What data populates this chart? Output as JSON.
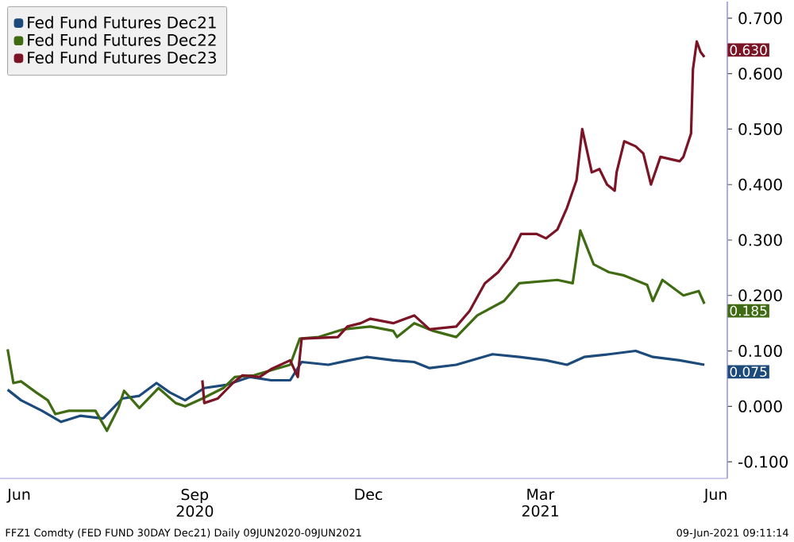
{
  "chart_data": {
    "type": "line",
    "legend": "top left",
    "marker": "none",
    "line_style": "solid",
    "grid": false,
    "xticks": [
      {
        "value": "2020-06-15",
        "label": "Jun"
      },
      {
        "value": "2020-09-15",
        "label": "Sep 2020"
      },
      {
        "value": "2020-12-15",
        "label": "Dec"
      },
      {
        "value": "2021-03-15",
        "label": "Mar 2021"
      },
      {
        "value": "2021-06-15",
        "label": "Jun"
      }
    ],
    "xlim": [
      "2020-06-05",
      "2021-06-21"
    ],
    "ylim": [
      -0.13,
      0.73
    ],
    "yticks": [
      {
        "value": -0.1,
        "label": "-0.100"
      },
      {
        "value": 0,
        "label": "0.000"
      },
      {
        "value": 0.1,
        "label": "0.100"
      },
      {
        "value": 0.2,
        "label": "0.200"
      },
      {
        "value": 0.3,
        "label": "0.300"
      },
      {
        "value": 0.4,
        "label": "0.400"
      },
      {
        "value": 0.5,
        "label": "0.500"
      },
      {
        "value": 0.6,
        "label": "0.600"
      },
      {
        "value": 0.7,
        "label": "0.700"
      }
    ],
    "series": [
      {
        "name": "Fed Fund Futures Dec21",
        "color": "#1c4a7a",
        "x": [
          "2020-06-09",
          "2020-06-16",
          "2020-06-27",
          "2020-07-07",
          "2020-07-17",
          "2020-07-29",
          "2020-08-08",
          "2020-08-17",
          "2020-08-26",
          "2020-09-02",
          "2020-09-10",
          "2020-09-20",
          "2020-10-02",
          "2020-10-14",
          "2020-10-25",
          "2020-11-04",
          "2020-11-10",
          "2020-11-24",
          "2020-12-05",
          "2020-12-14",
          "2020-12-28",
          "2021-01-08",
          "2021-01-16",
          "2021-01-30",
          "2021-02-18",
          "2021-03-04",
          "2021-03-18",
          "2021-03-29",
          "2021-04-07",
          "2021-04-20",
          "2021-05-04",
          "2021-05-13",
          "2021-05-27",
          "2021-06-09"
        ],
        "values": [
          0.03,
          0.011,
          -0.008,
          -0.028,
          -0.017,
          -0.022,
          0.014,
          0.019,
          0.042,
          0.025,
          0.011,
          0.033,
          0.039,
          0.053,
          0.047,
          0.047,
          0.08,
          0.075,
          0.083,
          0.089,
          0.083,
          0.08,
          0.069,
          0.075,
          0.094,
          0.089,
          0.083,
          0.075,
          0.089,
          0.094,
          0.1,
          0.089,
          0.083,
          0.075
        ]
      },
      {
        "name": "Fed Fund Futures Dec22",
        "color": "#3f6b12",
        "x": [
          "2020-06-09",
          "2020-06-12",
          "2020-06-16",
          "2020-06-24",
          "2020-06-30",
          "2020-07-04",
          "2020-07-11",
          "2020-07-25",
          "2020-07-31",
          "2020-08-06",
          "2020-08-09",
          "2020-08-17",
          "2020-08-27",
          "2020-09-05",
          "2020-09-10",
          "2020-09-19",
          "2020-09-30",
          "2020-10-06",
          "2020-10-16",
          "2020-10-27",
          "2020-11-04",
          "2020-11-09",
          "2020-11-19",
          "2020-12-02",
          "2020-12-16",
          "2020-12-28",
          "2020-12-30",
          "2021-01-08",
          "2021-01-18",
          "2021-01-30",
          "2021-02-10",
          "2021-02-24",
          "2021-03-04",
          "2021-03-24",
          "2021-04-01",
          "2021-04-05",
          "2021-04-12",
          "2021-04-20",
          "2021-04-28",
          "2021-05-10",
          "2021-05-13",
          "2021-05-18",
          "2021-05-29",
          "2021-06-06",
          "2021-06-09"
        ],
        "values": [
          0.103,
          0.042,
          0.045,
          0.025,
          0.011,
          -0.014,
          -0.008,
          -0.008,
          -0.044,
          -0.003,
          0.028,
          -0.003,
          0.033,
          0.006,
          0.0,
          0.014,
          0.033,
          0.053,
          0.056,
          0.067,
          0.075,
          0.122,
          0.125,
          0.139,
          0.144,
          0.136,
          0.125,
          0.15,
          0.136,
          0.125,
          0.164,
          0.19,
          0.222,
          0.228,
          0.222,
          0.317,
          0.256,
          0.242,
          0.236,
          0.219,
          0.19,
          0.228,
          0.2,
          0.208,
          0.185
        ]
      },
      {
        "name": "Fed Fund Futures Dec23",
        "color": "#7b1424",
        "x": [
          "2020-09-19",
          "2020-09-20",
          "2020-09-27",
          "2020-10-05",
          "2020-10-10",
          "2020-10-19",
          "2020-10-25",
          "2020-11-04",
          "2020-11-08",
          "2020-11-10",
          "2020-11-29",
          "2020-12-04",
          "2020-12-11",
          "2020-12-16",
          "2020-12-28",
          "2021-01-08",
          "2021-01-16",
          "2021-01-30",
          "2021-02-06",
          "2021-02-14",
          "2021-02-21",
          "2021-02-27",
          "2021-03-05",
          "2021-03-13",
          "2021-03-18",
          "2021-03-24",
          "2021-03-29",
          "2021-04-03",
          "2021-04-06",
          "2021-04-11",
          "2021-04-15",
          "2021-04-19",
          "2021-04-23",
          "2021-04-24",
          "2021-04-28",
          "2021-05-04",
          "2021-05-08",
          "2021-05-12",
          "2021-05-17",
          "2021-05-27",
          "2021-05-29",
          "2021-06-02",
          "2021-06-03",
          "2021-06-05",
          "2021-06-07",
          "2021-06-09"
        ],
        "values": [
          0.047,
          0.006,
          0.014,
          0.042,
          0.056,
          0.053,
          0.067,
          0.083,
          0.053,
          0.122,
          0.125,
          0.144,
          0.15,
          0.158,
          0.15,
          0.164,
          0.139,
          0.144,
          0.172,
          0.222,
          0.242,
          0.269,
          0.311,
          0.311,
          0.303,
          0.319,
          0.358,
          0.408,
          0.5,
          0.422,
          0.428,
          0.4,
          0.389,
          0.422,
          0.478,
          0.469,
          0.456,
          0.4,
          0.45,
          0.442,
          0.45,
          0.492,
          0.608,
          0.658,
          0.639,
          0.63
        ]
      }
    ],
    "annotations": [
      {
        "text": "0.630",
        "x": "2021-06-09",
        "y": 0.63
      },
      {
        "text": "0.185",
        "x": "2021-06-09",
        "y": 0.185
      },
      {
        "text": "0.075",
        "x": "2021-06-09",
        "y": 0.075
      },
      "FFZ1 Comdty (FED FUND 30DAY Dec21) Daily 09JUN2020-09JUN2021",
      "09-Jun-2021 09:11:14"
    ]
  }
}
